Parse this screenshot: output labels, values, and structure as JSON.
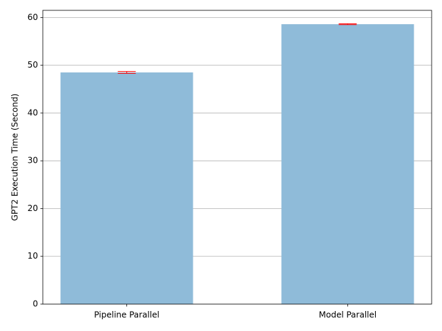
{
  "chart_data": {
    "type": "bar",
    "ylabel": "GPT2 Execution Time (Second)",
    "categories": [
      "Pipeline Parallel",
      "Model Parallel"
    ],
    "values": [
      48.5,
      58.6
    ],
    "errors": [
      0.2,
      0.1
    ],
    "color": "#8fbbd9",
    "error_color": "#ff0000",
    "ylim": [
      0,
      61.5
    ],
    "yticks": [
      0,
      10,
      20,
      30,
      40,
      50,
      60
    ],
    "grid": true
  }
}
